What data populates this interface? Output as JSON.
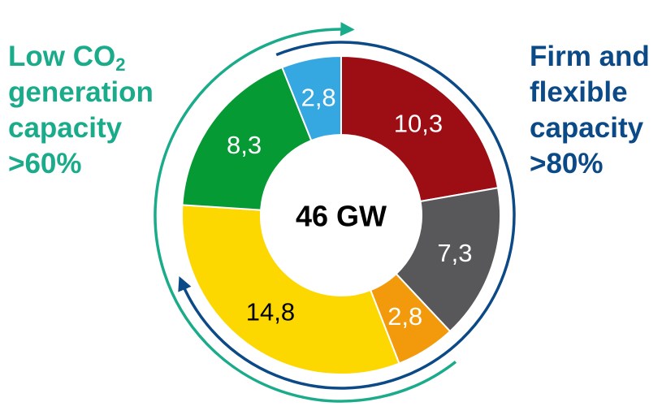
{
  "left_annotation": {
    "line1_prefix": "Low CO",
    "line1_subscript": "2",
    "line2": "generation",
    "line3": "capacity",
    "line4": ">60%",
    "color": "#1aab8a"
  },
  "right_annotation": {
    "line1": "Firm and",
    "line2": "flexible",
    "line3": "capacity",
    "line4": ">80%",
    "color": "#0b4a86"
  },
  "chart_data": {
    "type": "pie",
    "variant": "donut",
    "center_label": "46 GW",
    "start": "12 o'clock",
    "direction": "clockwise",
    "slices": [
      {
        "value": 10.3,
        "label": "10,3",
        "color": "#9c0d14",
        "label_color": "#ffffff"
      },
      {
        "value": 7.3,
        "label": "7,3",
        "color": "#58585a",
        "label_color": "#ffffff"
      },
      {
        "value": 2.8,
        "label": "2,8",
        "color": "#f29a0b",
        "label_color": "#ffffff"
      },
      {
        "value": 14.8,
        "label": "14,8",
        "color": "#fdd800",
        "label_color": "#000000"
      },
      {
        "value": 8.3,
        "label": "8,3",
        "color": "#069a35",
        "label_color": "#ffffff"
      },
      {
        "value": 2.8,
        "label": "2,8",
        "color": "#35a7e1",
        "label_color": "#ffffff"
      }
    ]
  }
}
